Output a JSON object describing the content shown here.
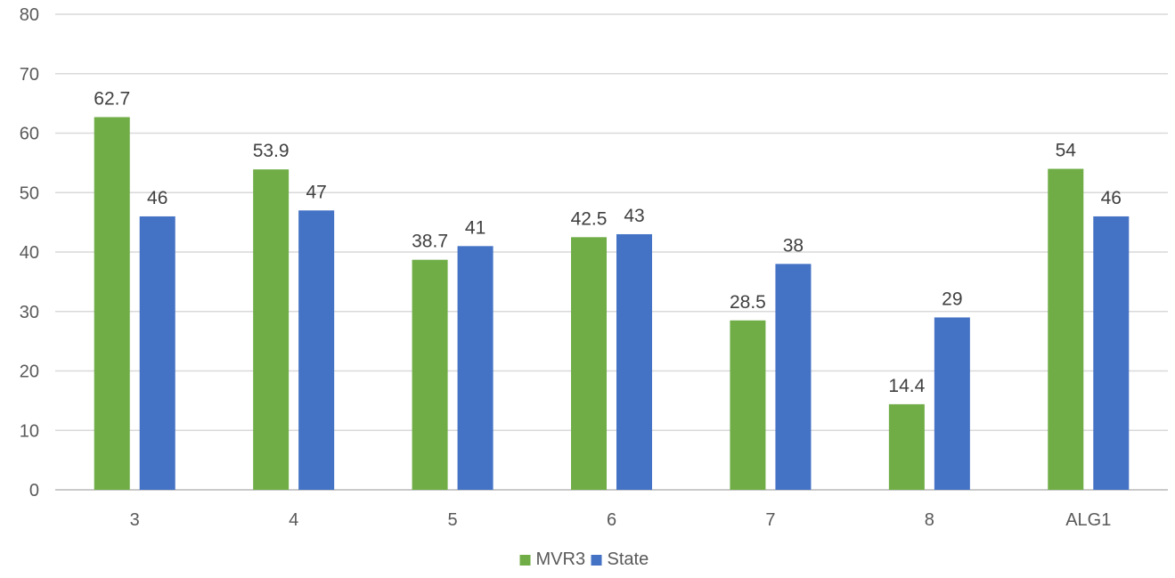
{
  "chart_data": {
    "type": "bar",
    "title": "",
    "xlabel": "",
    "ylabel": "",
    "categories": [
      "3",
      "4",
      "5",
      "6",
      "7",
      "8",
      "ALG1"
    ],
    "series": [
      {
        "name": "MVR3",
        "color": "#70ad47",
        "values": [
          62.7,
          53.9,
          38.7,
          42.5,
          28.5,
          14.4,
          54
        ]
      },
      {
        "name": "State",
        "color": "#4472c4",
        "values": [
          46,
          47,
          41,
          43,
          38,
          29,
          46
        ]
      }
    ],
    "ylim": [
      0,
      80
    ],
    "yticks": [
      0,
      10,
      20,
      30,
      40,
      50,
      60,
      70,
      80
    ],
    "grid": true,
    "data_labels": true,
    "legend": "bottom-center",
    "gridline_color": "#d9d9d9"
  }
}
